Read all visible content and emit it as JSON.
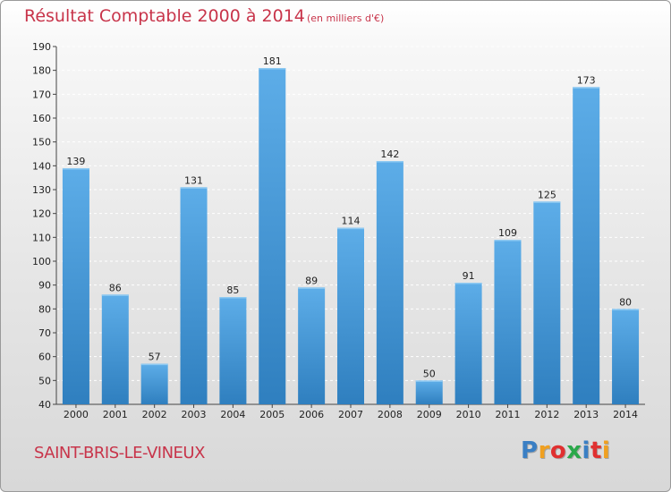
{
  "header": {
    "title": "Résultat Comptable 2000 à 2014",
    "subtitle": "(en milliers d'€)"
  },
  "footer": {
    "commune": "SAINT-BRIS-LE-VINEUX",
    "logo_text": "Proxiti",
    "logo_colors": [
      "#3a7fc4",
      "#f0a020",
      "#e03030",
      "#2aa84a",
      "#3a7fc4",
      "#e03030",
      "#f0a020"
    ]
  },
  "colors": {
    "bar_top": "#5dade8",
    "bar_bottom": "#2f7fbf",
    "title": "#c8344a"
  },
  "chart_data": {
    "type": "bar",
    "title": "Résultat Comptable 2000 à 2014",
    "subtitle": "(en milliers d'€)",
    "xlabel": "",
    "ylabel": "",
    "categories": [
      "2000",
      "2001",
      "2002",
      "2003",
      "2004",
      "2005",
      "2006",
      "2007",
      "2008",
      "2009",
      "2010",
      "2011",
      "2012",
      "2013",
      "2014"
    ],
    "values": [
      139,
      86,
      57,
      131,
      85,
      181,
      89,
      114,
      142,
      50,
      91,
      109,
      125,
      173,
      80
    ],
    "ylim": [
      40,
      190
    ],
    "yticks": [
      40,
      50,
      60,
      70,
      80,
      90,
      100,
      110,
      120,
      130,
      140,
      150,
      160,
      170,
      180,
      190
    ],
    "grid": true
  }
}
